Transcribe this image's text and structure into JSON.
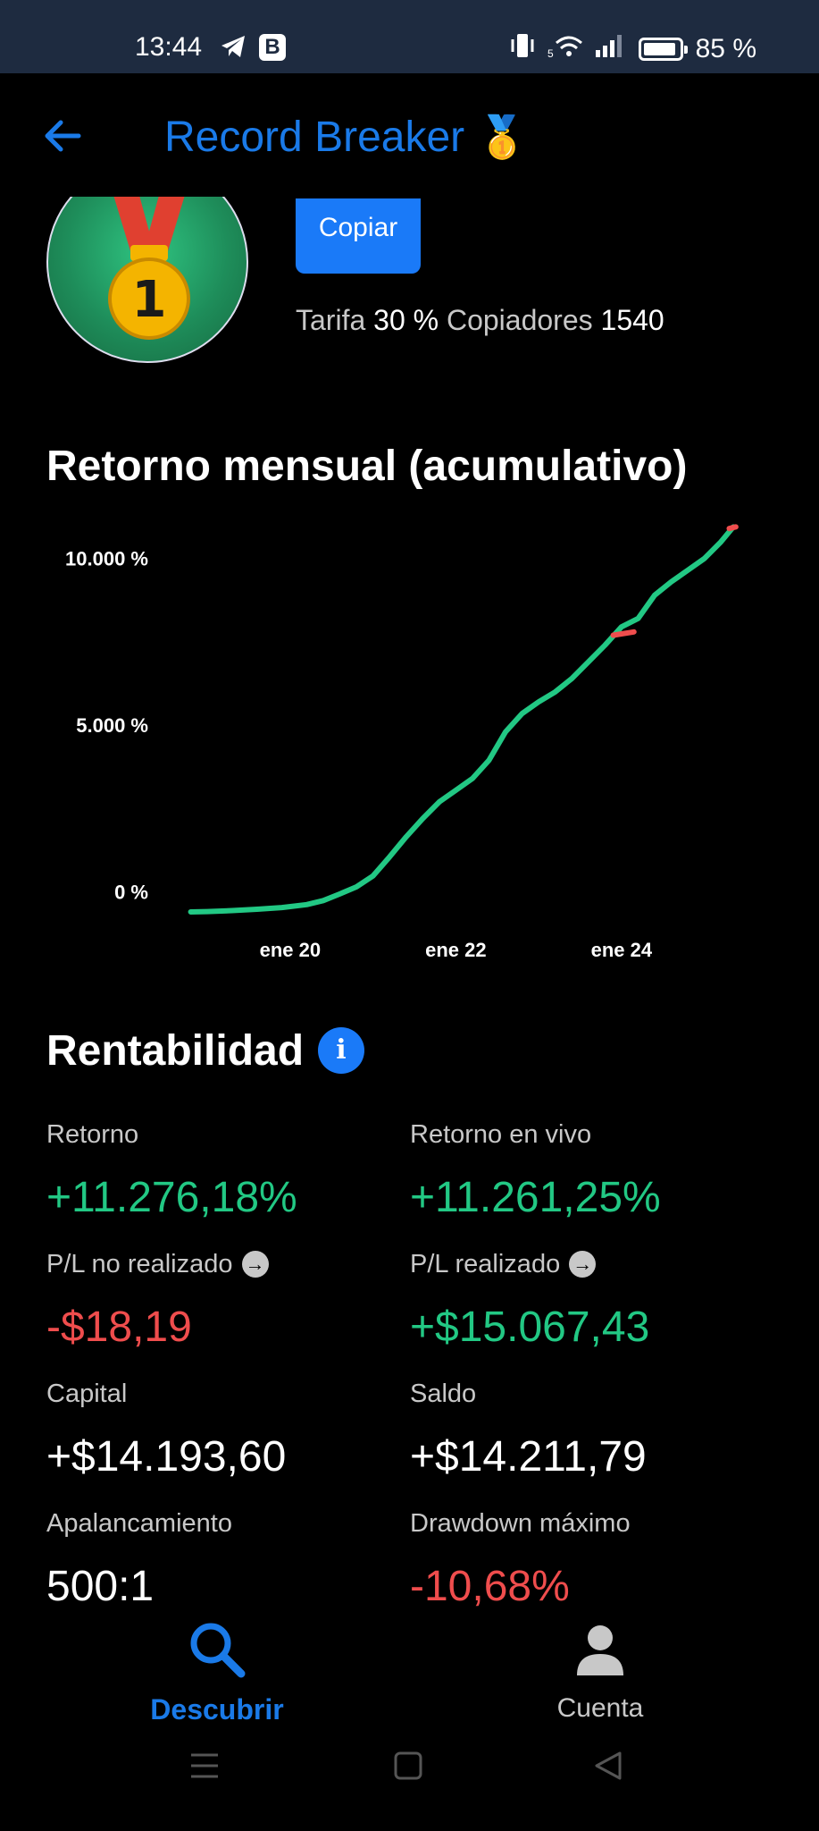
{
  "status_bar": {
    "time": "13:44",
    "battery": "85 %",
    "network_badge": "5"
  },
  "header": {
    "title": "Record Breaker",
    "title_emoji": "🥇"
  },
  "profile": {
    "avatar_number": "1",
    "copy_label": "Copiar",
    "fee_label": "Tarifa",
    "fee_value": "30 %",
    "copiers_label": "Copiadores",
    "copiers_value": "1540"
  },
  "chart_section": {
    "title": "Retorno mensual (acumulativo)"
  },
  "chart_data": {
    "type": "line",
    "title": "Retorno mensual (acumulativo)",
    "y_ticks": [
      "10.000 %",
      "5.000 %",
      "0 %"
    ],
    "y_tick_values": [
      10000,
      5000,
      0
    ],
    "x_ticks": [
      "ene 20",
      "ene 22",
      "ene 24"
    ],
    "x_tick_values": [
      2020.0,
      2022.0,
      2024.0
    ],
    "ylim": [
      -600,
      11200
    ],
    "xlim": [
      2018.6,
      2025.5
    ],
    "series": [
      {
        "color": "#22c884",
        "x": [
          2018.8,
          2019.0,
          2019.3,
          2019.6,
          2019.9,
          2020.2,
          2020.4,
          2020.6,
          2020.8,
          2021.0,
          2021.2,
          2021.4,
          2021.6,
          2021.8,
          2022.0,
          2022.2,
          2022.4,
          2022.6,
          2022.8,
          2023.0,
          2023.2,
          2023.4,
          2023.6,
          2023.8,
          2024.0,
          2024.2,
          2024.4,
          2024.6,
          2024.8,
          2025.0,
          2025.2,
          2025.35
        ],
        "y": [
          -600,
          -590,
          -560,
          -520,
          -470,
          -380,
          -260,
          -60,
          150,
          480,
          1050,
          1650,
          2200,
          2700,
          3050,
          3400,
          3950,
          4800,
          5350,
          5700,
          6000,
          6400,
          6900,
          7400,
          7950,
          8200,
          8900,
          9300,
          9650,
          10000,
          10500,
          10950
        ]
      }
    ],
    "highlight_segments": [
      {
        "color": "#ef4d4d",
        "x": [
          2023.9,
          2024.15
        ],
        "y": [
          7700,
          7800
        ]
      },
      {
        "color": "#ef4d4d",
        "x": [
          2025.3,
          2025.38
        ],
        "y": [
          10900,
          10950
        ]
      }
    ]
  },
  "profitability": {
    "title": "Rentabilidad",
    "info_glyph": "i",
    "metrics": [
      {
        "label": "Retorno",
        "value": "+11.276,18%",
        "color": "green"
      },
      {
        "label": "Retorno en vivo",
        "value": "+11.261,25%",
        "color": "green"
      },
      {
        "label": "P/L no realizado",
        "value": "-$18,19",
        "color": "red",
        "arrow": true
      },
      {
        "label": "P/L realizado",
        "value": "+$15.067,43",
        "color": "green",
        "arrow": true
      },
      {
        "label": "Capital",
        "value": "+$14.193,60",
        "color": "white"
      },
      {
        "label": "Saldo",
        "value": "+$14.211,79",
        "color": "white"
      },
      {
        "label": "Apalancamiento",
        "value": "500:1",
        "color": "white"
      },
      {
        "label": "Drawdown máximo",
        "value": "-10,68%",
        "color": "red"
      }
    ]
  },
  "bottom_nav": {
    "items": [
      {
        "label": "Descubrir",
        "icon": "search-icon",
        "active": true
      },
      {
        "label": "Cuenta",
        "icon": "person-icon",
        "active": false
      }
    ]
  },
  "colors": {
    "accent": "#1a7ae8",
    "positive": "#22c884",
    "negative": "#ef4d4d",
    "status_bar": "#1e2b40"
  }
}
